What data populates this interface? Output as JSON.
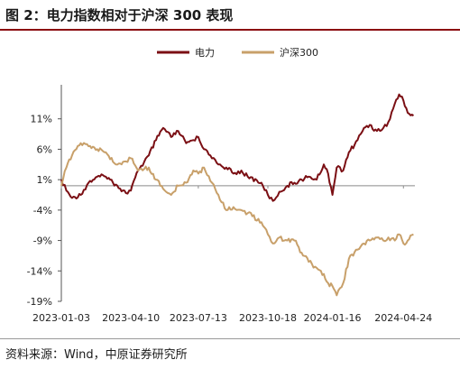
{
  "figure_title": "图 2：电力指数相对于沪深 300 表现",
  "source_note": "资料来源：Wind，中原证券研究所",
  "colors": {
    "power": "#7b0f14",
    "csi300": "#c8a06a",
    "rule": "#8b0a10",
    "zero_line": "#8a8a8a"
  },
  "chart_data": {
    "type": "line",
    "title": "",
    "xlabel": "",
    "ylabel": "",
    "ylim": [
      -19,
      16
    ],
    "y_ticks": [
      "11%",
      "6%",
      "1%",
      "-4%",
      "-9%",
      "-14%",
      "-19%"
    ],
    "y_tick_values": [
      11,
      6,
      1,
      -4,
      -9,
      -14,
      -19
    ],
    "x_ticks": [
      "2023-01-03",
      "2023-04-10",
      "2023-07-13",
      "2023-10-18",
      "2024-01-16",
      "2024-04-24"
    ],
    "x_start": "2023-01-03",
    "x_end": "2024-05-10",
    "legend_position": "top-center",
    "grid": false,
    "series": [
      {
        "name": "电力",
        "points": [
          [
            "2023-01-03",
            1.0
          ],
          [
            "2023-01-10",
            -0.8
          ],
          [
            "2023-01-18",
            -2.0
          ],
          [
            "2023-01-30",
            -1.5
          ],
          [
            "2023-02-10",
            0.5
          ],
          [
            "2023-02-22",
            1.5
          ],
          [
            "2023-03-06",
            1.5
          ],
          [
            "2023-03-20",
            0.2
          ],
          [
            "2023-04-03",
            -1.2
          ],
          [
            "2023-04-10",
            -0.8
          ],
          [
            "2023-04-20",
            2.5
          ],
          [
            "2023-05-05",
            5.0
          ],
          [
            "2023-05-15",
            7.5
          ],
          [
            "2023-05-25",
            9.5
          ],
          [
            "2023-06-05",
            8.0
          ],
          [
            "2023-06-15",
            9.0
          ],
          [
            "2023-06-26",
            7.0
          ],
          [
            "2023-07-06",
            7.5
          ],
          [
            "2023-07-13",
            8.0
          ],
          [
            "2023-07-21",
            6.0
          ],
          [
            "2023-08-01",
            4.5
          ],
          [
            "2023-08-10",
            3.5
          ],
          [
            "2023-08-21",
            3.0
          ],
          [
            "2023-08-31",
            2.0
          ],
          [
            "2023-09-11",
            2.5
          ],
          [
            "2023-09-20",
            1.5
          ],
          [
            "2023-10-09",
            0.5
          ],
          [
            "2023-10-18",
            -1.5
          ],
          [
            "2023-10-25",
            -2.5
          ],
          [
            "2023-11-03",
            -1.0
          ],
          [
            "2023-11-14",
            0.0
          ],
          [
            "2023-11-24",
            0.5
          ],
          [
            "2023-12-04",
            1.0
          ],
          [
            "2023-12-14",
            1.5
          ],
          [
            "2023-12-25",
            1.0
          ],
          [
            "2024-01-04",
            3.5
          ],
          [
            "2024-01-10",
            2.0
          ],
          [
            "2024-01-16",
            -1.5
          ],
          [
            "2024-01-22",
            3.0
          ],
          [
            "2024-01-31",
            2.5
          ],
          [
            "2024-02-08",
            5.5
          ],
          [
            "2024-02-20",
            7.5
          ],
          [
            "2024-02-29",
            9.5
          ],
          [
            "2024-03-08",
            10.0
          ],
          [
            "2024-03-18",
            9.0
          ],
          [
            "2024-03-27",
            9.5
          ],
          [
            "2024-04-03",
            10.5
          ],
          [
            "2024-04-12",
            13.5
          ],
          [
            "2024-04-18",
            15.0
          ],
          [
            "2024-04-24",
            14.0
          ],
          [
            "2024-04-30",
            12.0
          ],
          [
            "2024-05-08",
            11.5
          ]
        ]
      },
      {
        "name": "沪深300",
        "points": [
          [
            "2023-01-03",
            0.0
          ],
          [
            "2023-01-10",
            3.0
          ],
          [
            "2023-01-18",
            5.0
          ],
          [
            "2023-01-30",
            7.0
          ],
          [
            "2023-02-10",
            6.5
          ],
          [
            "2023-02-22",
            6.0
          ],
          [
            "2023-03-06",
            5.5
          ],
          [
            "2023-03-20",
            3.5
          ],
          [
            "2023-04-03",
            4.0
          ],
          [
            "2023-04-10",
            4.5
          ],
          [
            "2023-04-20",
            2.5
          ],
          [
            "2023-05-05",
            3.0
          ],
          [
            "2023-05-15",
            1.0
          ],
          [
            "2023-05-25",
            -0.5
          ],
          [
            "2023-06-05",
            -1.5
          ],
          [
            "2023-06-15",
            0.0
          ],
          [
            "2023-06-26",
            0.5
          ],
          [
            "2023-07-06",
            2.5
          ],
          [
            "2023-07-13",
            2.0
          ],
          [
            "2023-07-21",
            3.0
          ],
          [
            "2023-08-01",
            0.5
          ],
          [
            "2023-08-10",
            -1.5
          ],
          [
            "2023-08-21",
            -4.0
          ],
          [
            "2023-08-31",
            -3.5
          ],
          [
            "2023-09-11",
            -4.0
          ],
          [
            "2023-09-20",
            -4.5
          ],
          [
            "2023-10-09",
            -6.0
          ],
          [
            "2023-10-18",
            -8.0
          ],
          [
            "2023-10-25",
            -9.5
          ],
          [
            "2023-11-03",
            -8.5
          ],
          [
            "2023-11-14",
            -9.0
          ],
          [
            "2023-11-24",
            -9.0
          ],
          [
            "2023-12-04",
            -11.0
          ],
          [
            "2023-12-14",
            -12.5
          ],
          [
            "2023-12-25",
            -13.5
          ],
          [
            "2024-01-04",
            -14.5
          ],
          [
            "2024-01-10",
            -16.0
          ],
          [
            "2024-01-16",
            -16.5
          ],
          [
            "2024-01-22",
            -18.0
          ],
          [
            "2024-01-31",
            -16.0
          ],
          [
            "2024-02-08",
            -12.0
          ],
          [
            "2024-02-20",
            -10.5
          ],
          [
            "2024-02-29",
            -9.5
          ],
          [
            "2024-03-08",
            -9.0
          ],
          [
            "2024-03-18",
            -8.5
          ],
          [
            "2024-03-27",
            -9.0
          ],
          [
            "2024-04-03",
            -8.5
          ],
          [
            "2024-04-12",
            -9.0
          ],
          [
            "2024-04-18",
            -8.0
          ],
          [
            "2024-04-24",
            -9.5
          ],
          [
            "2024-04-30",
            -9.0
          ],
          [
            "2024-05-08",
            -8.0
          ]
        ]
      }
    ]
  }
}
